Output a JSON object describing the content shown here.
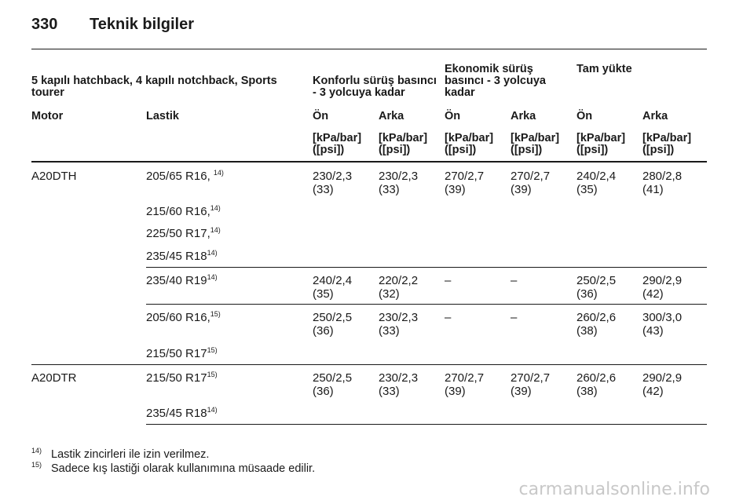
{
  "header": {
    "page_number": "330",
    "title": "Teknik bilgiler"
  },
  "table": {
    "group_headers": {
      "body_types": "5 kapılı hatchback, 4 kapılı notchback, Sports tourer",
      "comfort": "Konforlu sürüş basıncı - 3 yolcuya kadar",
      "eco": "Ekonomik sürüş basıncı - 3 yolcuya kadar",
      "full": "Tam yükte"
    },
    "columns": [
      "Motor",
      "Lastik",
      "Ön",
      "Arka",
      "Ön",
      "Arka",
      "Ön",
      "Arka"
    ],
    "unit": "[kPa/bar] ([psi])",
    "rows": [
      {
        "motor": "A20DTH",
        "tyre": "205/65 R16,",
        "note": "14)",
        "values": [
          "230/2,3 (33)",
          "230/2,3 (33)",
          "270/2,7 (39)",
          "270/2,7 (39)",
          "240/2,4 (35)",
          "280/2,8 (41)"
        ]
      },
      {
        "tyre": "215/60 R16,",
        "note": "14)"
      },
      {
        "tyre": "225/50 R17,",
        "note": "14)"
      },
      {
        "tyre": "235/45 R18",
        "note": "14)"
      },
      {
        "tyre": "235/40 R19",
        "note": "14)",
        "values": [
          "240/2,4 (35)",
          "220/2,2 (32)",
          "–",
          "–",
          "250/2,5 (36)",
          "290/2,9 (42)"
        ]
      },
      {
        "tyre": "205/60 R16,",
        "note": "15)",
        "values": [
          "250/2,5 (36)",
          "230/2,3 (33)",
          "–",
          "–",
          "260/2,6 (38)",
          "300/3,0 (43)"
        ]
      },
      {
        "tyre": "215/50 R17",
        "note": "15)"
      },
      {
        "motor": "A20DTR",
        "tyre": "215/50 R17",
        "note": "15)",
        "values": [
          "250/2,5 (36)",
          "230/2,3 (33)",
          "270/2,7 (39)",
          "270/2,7 (39)",
          "260/2,6 (38)",
          "290/2,9 (42)"
        ]
      },
      {
        "tyre": "235/45 R18",
        "note": "14)"
      }
    ]
  },
  "footnotes": [
    {
      "mark": "14)",
      "text": "Lastik zincirleri ile izin verilmez."
    },
    {
      "mark": "15)",
      "text": "Sadece kış lastiği olarak kullanımına müsaade edilir."
    }
  ],
  "watermark": "carmanualsonline.info"
}
